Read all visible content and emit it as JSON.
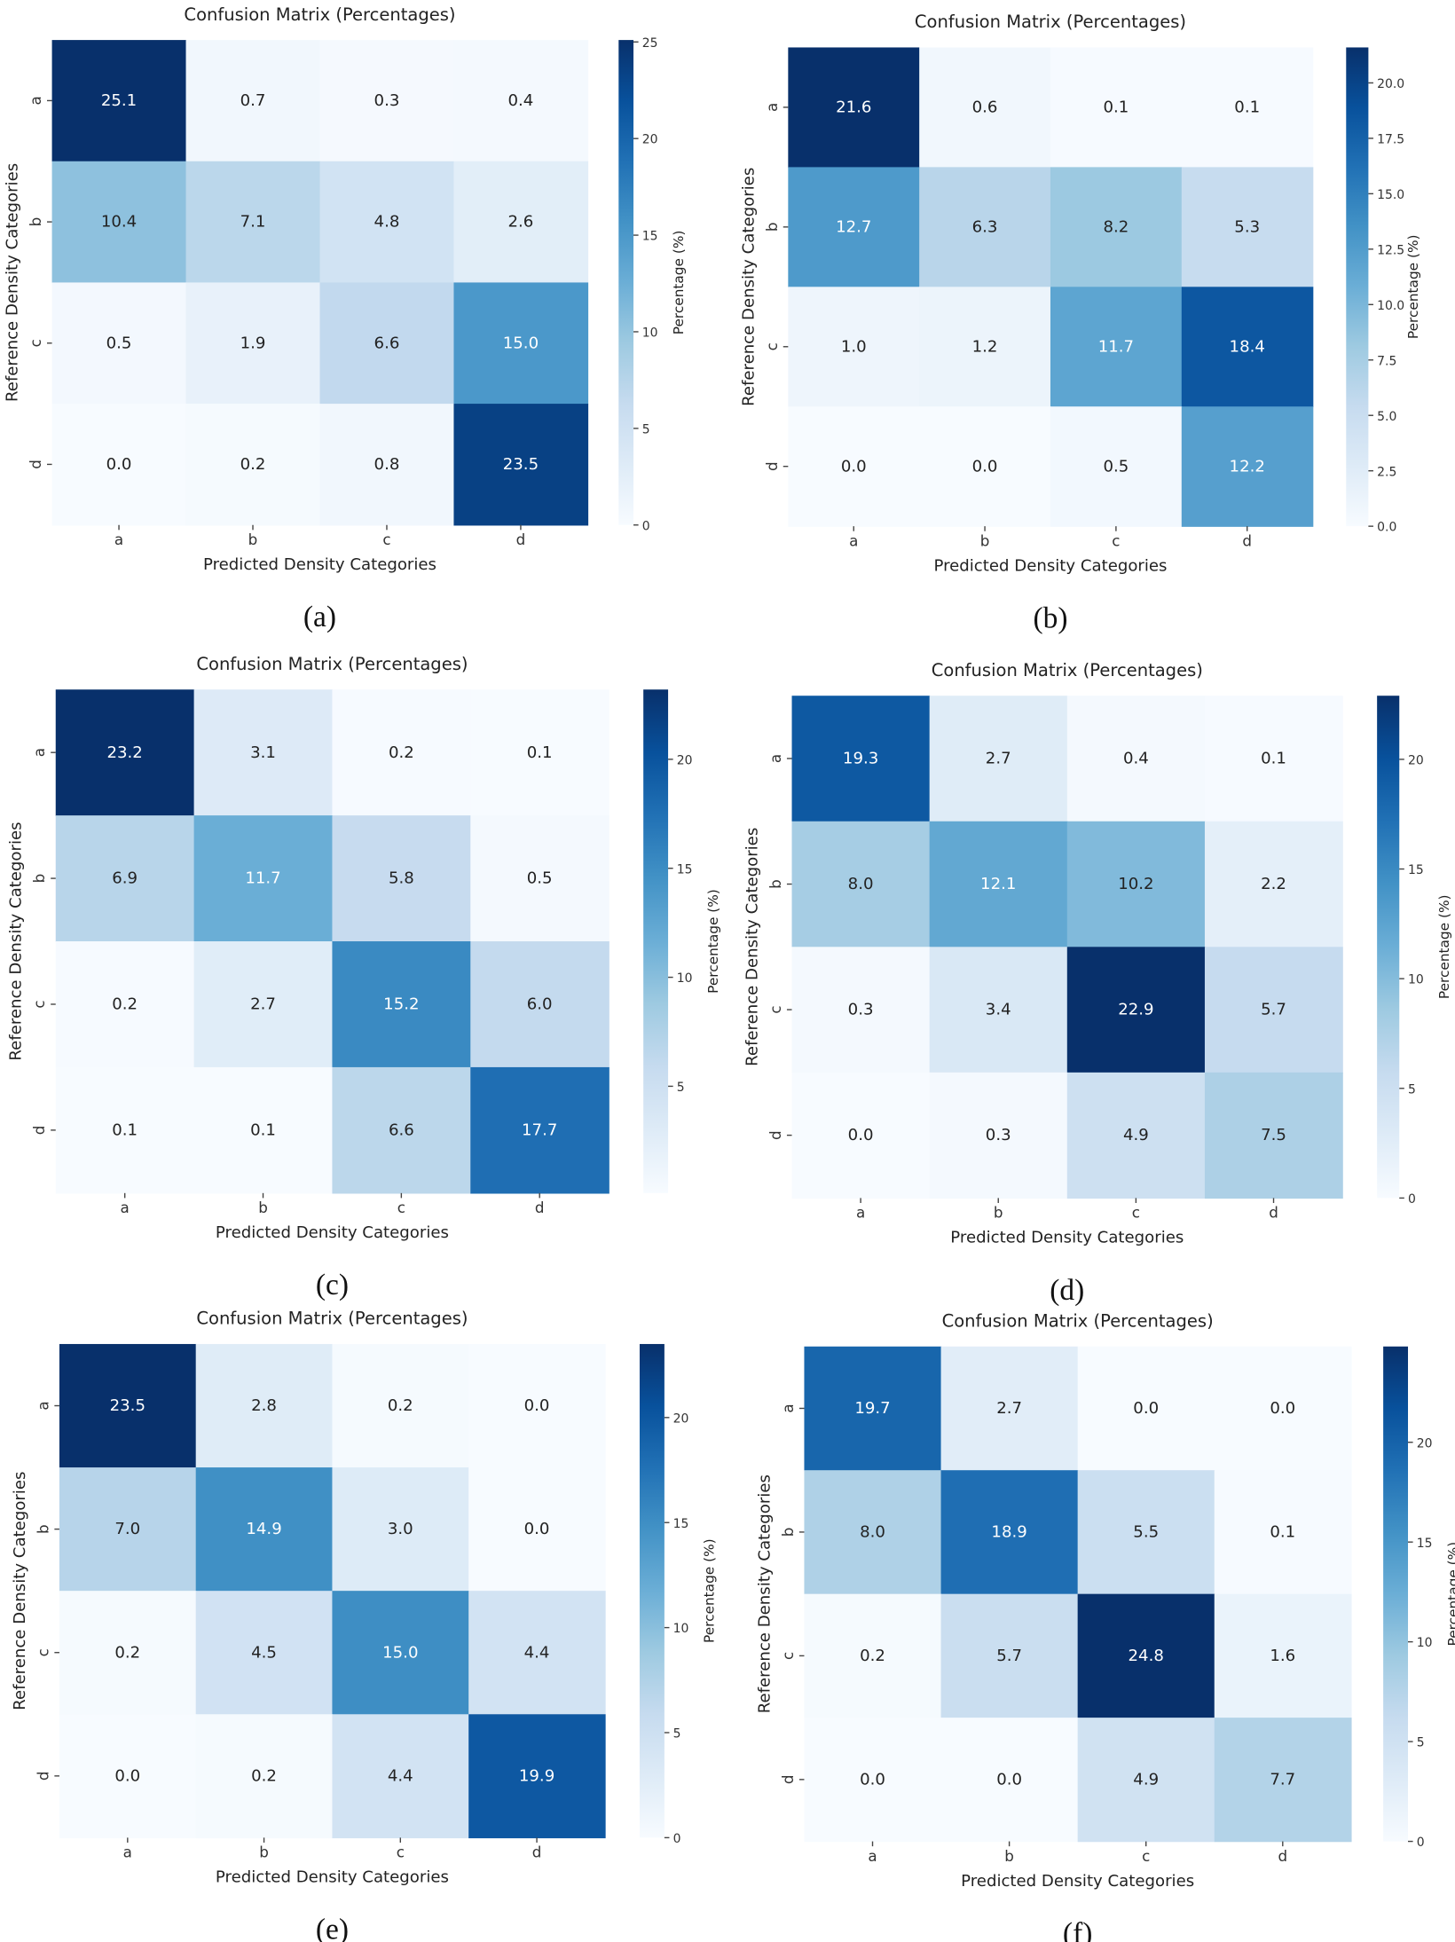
{
  "chart_data": [
    {
      "type": "heatmap",
      "caption": "(a)",
      "title": "Confusion Matrix (Percentages)",
      "xlabel": "Predicted Density Categories",
      "ylabel": "Reference Density Categories",
      "colorbar_label": "Percentage (%)",
      "colormap": "Blues",
      "x_categories": [
        "a",
        "b",
        "c",
        "d"
      ],
      "y_categories": [
        "a",
        "b",
        "c",
        "d"
      ],
      "values": [
        [
          25.1,
          0.7,
          0.3,
          0.4
        ],
        [
          10.4,
          7.1,
          4.8,
          2.6
        ],
        [
          0.5,
          1.9,
          6.6,
          15.0
        ],
        [
          0.0,
          0.2,
          0.8,
          23.5
        ]
      ],
      "colorbar_range": [
        0,
        25.1
      ],
      "colorbar_ticks": [
        "0",
        "5",
        "10",
        "15",
        "20",
        "25"
      ]
    },
    {
      "type": "heatmap",
      "caption": "(b)",
      "title": "Confusion Matrix (Percentages)",
      "xlabel": "Predicted Density Categories",
      "ylabel": "Reference Density Categories",
      "colorbar_label": "Percentage (%)",
      "colormap": "Blues",
      "x_categories": [
        "a",
        "b",
        "c",
        "d"
      ],
      "y_categories": [
        "a",
        "b",
        "c",
        "d"
      ],
      "values": [
        [
          21.6,
          0.6,
          0.1,
          0.1
        ],
        [
          12.7,
          6.3,
          8.2,
          5.3
        ],
        [
          1.0,
          1.2,
          11.7,
          18.4
        ],
        [
          0.0,
          0.0,
          0.5,
          12.2
        ]
      ],
      "colorbar_range": [
        0,
        21.6
      ],
      "colorbar_ticks": [
        "0.0",
        "2.5",
        "5.0",
        "7.5",
        "10.0",
        "12.5",
        "15.0",
        "17.5",
        "20.0"
      ]
    },
    {
      "type": "heatmap",
      "caption": "(c)",
      "title": "Confusion Matrix (Percentages)",
      "xlabel": "Predicted Density Categories",
      "ylabel": "Reference Density Categories",
      "colorbar_label": "Percentage (%)",
      "colormap": "Blues",
      "x_categories": [
        "a",
        "b",
        "c",
        "d"
      ],
      "y_categories": [
        "a",
        "b",
        "c",
        "d"
      ],
      "values": [
        [
          23.2,
          3.1,
          0.2,
          0.1
        ],
        [
          6.9,
          11.7,
          5.8,
          0.5
        ],
        [
          0.2,
          2.7,
          15.2,
          6.0
        ],
        [
          0.1,
          0.1,
          6.6,
          17.7
        ]
      ],
      "colorbar_range": [
        0.1,
        23.2
      ],
      "colorbar_ticks": [
        "5",
        "10",
        "15",
        "20"
      ]
    },
    {
      "type": "heatmap",
      "caption": "(d)",
      "title": "Confusion Matrix (Percentages)",
      "xlabel": "Predicted Density Categories",
      "ylabel": "Reference Density Categories",
      "colorbar_label": "Percentage (%)",
      "colormap": "Blues",
      "x_categories": [
        "a",
        "b",
        "c",
        "d"
      ],
      "y_categories": [
        "a",
        "b",
        "c",
        "d"
      ],
      "values": [
        [
          19.3,
          2.7,
          0.4,
          0.1
        ],
        [
          8.0,
          12.1,
          10.2,
          2.2
        ],
        [
          0.3,
          3.4,
          22.9,
          5.7
        ],
        [
          0.0,
          0.3,
          4.9,
          7.5
        ]
      ],
      "colorbar_range": [
        0,
        22.9
      ],
      "colorbar_ticks": [
        "0",
        "5",
        "10",
        "15",
        "20"
      ]
    },
    {
      "type": "heatmap",
      "caption": "(e)",
      "title": "Confusion Matrix (Percentages)",
      "xlabel": "Predicted Density Categories",
      "ylabel": "Reference Density Categories",
      "colorbar_label": "Percentage (%)",
      "colormap": "Blues",
      "x_categories": [
        "a",
        "b",
        "c",
        "d"
      ],
      "y_categories": [
        "a",
        "b",
        "c",
        "d"
      ],
      "values": [
        [
          23.5,
          2.8,
          0.2,
          0.0
        ],
        [
          7.0,
          14.9,
          3.0,
          0.0
        ],
        [
          0.2,
          4.5,
          15.0,
          4.4
        ],
        [
          0.0,
          0.2,
          4.4,
          19.9
        ]
      ],
      "colorbar_range": [
        0,
        23.5
      ],
      "colorbar_ticks": [
        "0",
        "5",
        "10",
        "15",
        "20"
      ]
    },
    {
      "type": "heatmap",
      "caption": "(f)",
      "title": "Confusion Matrix (Percentages)",
      "xlabel": "Predicted Density Categories",
      "ylabel": "Reference Density Categories",
      "colorbar_label": "Percentage (%)",
      "colormap": "Blues",
      "x_categories": [
        "a",
        "b",
        "c",
        "d"
      ],
      "y_categories": [
        "a",
        "b",
        "c",
        "d"
      ],
      "values": [
        [
          19.7,
          2.7,
          0.0,
          0.0
        ],
        [
          8.0,
          18.9,
          5.5,
          0.1
        ],
        [
          0.2,
          5.7,
          24.8,
          1.6
        ],
        [
          0.0,
          0.0,
          4.9,
          7.7
        ]
      ],
      "colorbar_range": [
        0,
        24.8
      ],
      "colorbar_ticks": [
        "0",
        "5",
        "10",
        "15",
        "20"
      ]
    }
  ]
}
